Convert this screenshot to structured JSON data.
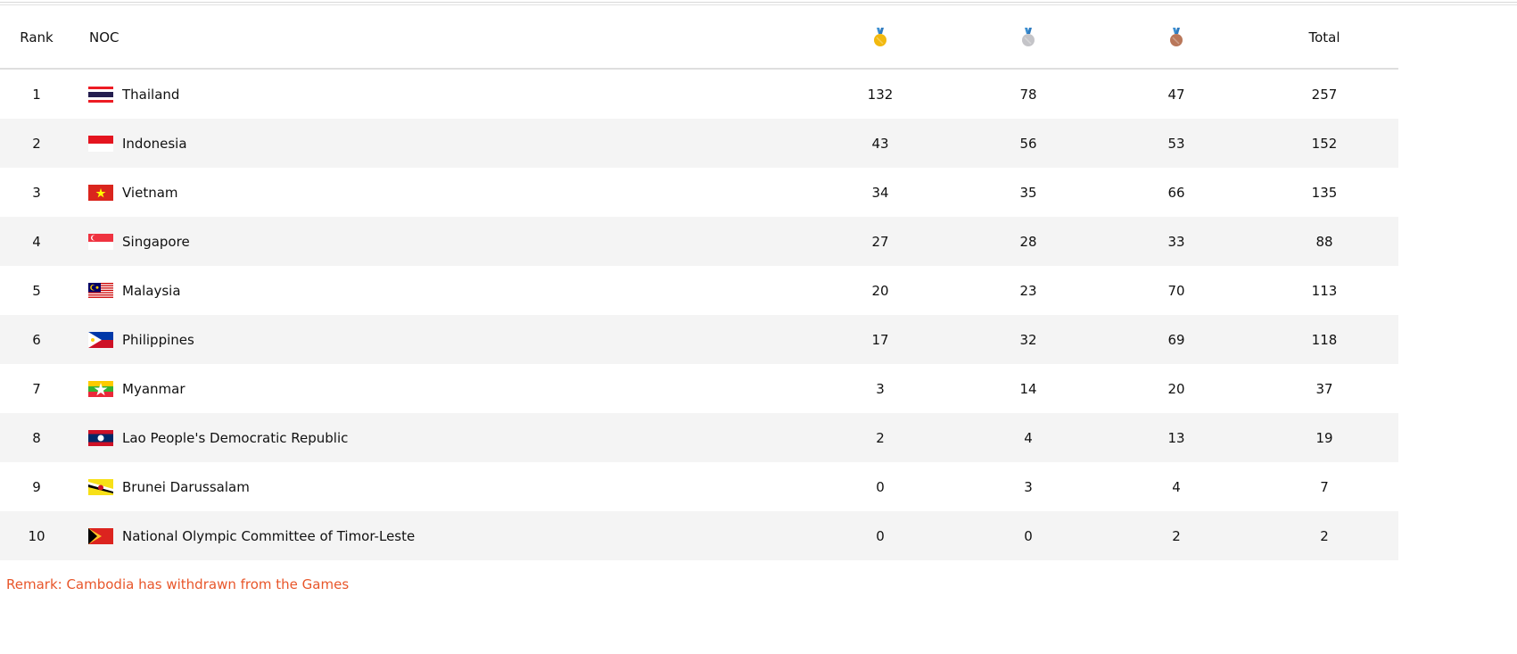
{
  "table": {
    "headers": {
      "rank": "Rank",
      "noc": "NOC",
      "gold_icon": "gold-medal",
      "silver_icon": "silver-medal",
      "bronze_icon": "bronze-medal",
      "total": "Total"
    },
    "rows": [
      {
        "rank": "1",
        "noc": "Thailand",
        "flag": "th",
        "gold": "132",
        "silver": "78",
        "bronze": "47",
        "total": "257"
      },
      {
        "rank": "2",
        "noc": "Indonesia",
        "flag": "id",
        "gold": "43",
        "silver": "56",
        "bronze": "53",
        "total": "152"
      },
      {
        "rank": "3",
        "noc": "Vietnam",
        "flag": "vn",
        "gold": "34",
        "silver": "35",
        "bronze": "66",
        "total": "135"
      },
      {
        "rank": "4",
        "noc": "Singapore",
        "flag": "sg",
        "gold": "27",
        "silver": "28",
        "bronze": "33",
        "total": "88"
      },
      {
        "rank": "5",
        "noc": "Malaysia",
        "flag": "my",
        "gold": "20",
        "silver": "23",
        "bronze": "70",
        "total": "113"
      },
      {
        "rank": "6",
        "noc": "Philippines",
        "flag": "ph",
        "gold": "17",
        "silver": "32",
        "bronze": "69",
        "total": "118"
      },
      {
        "rank": "7",
        "noc": "Myanmar",
        "flag": "mm",
        "gold": "3",
        "silver": "14",
        "bronze": "20",
        "total": "37"
      },
      {
        "rank": "8",
        "noc": "Lao People's Democratic Republic",
        "flag": "la",
        "gold": "2",
        "silver": "4",
        "bronze": "13",
        "total": "19"
      },
      {
        "rank": "9",
        "noc": "Brunei Darussalam",
        "flag": "bn",
        "gold": "0",
        "silver": "3",
        "bronze": "4",
        "total": "7"
      },
      {
        "rank": "10",
        "noc": "National Olympic Committee of Timor-Leste",
        "flag": "tl",
        "gold": "0",
        "silver": "0",
        "bronze": "2",
        "total": "2"
      }
    ]
  },
  "remark": "Remark: Cambodia has withdrawn from the Games",
  "colors": {
    "remark": "#e8562a",
    "gold": "#f2b90f",
    "silver": "#c4c4c8",
    "bronze": "#b9775a",
    "ribbon": "#3d8fd1",
    "stripe": "#f4f4f4"
  }
}
